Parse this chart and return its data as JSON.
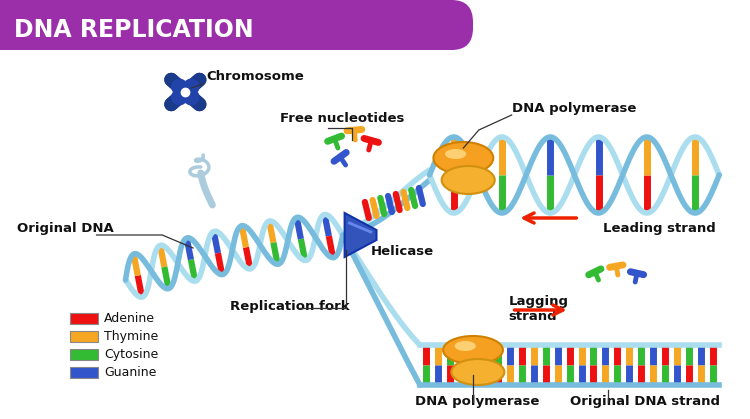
{
  "title": "DNA REPLICATION",
  "title_bg_color": "#9B2FAA",
  "title_text_color": "#FFFFFF",
  "bg_color": "#FFFFFF",
  "legend_items": [
    {
      "label": "Adenine",
      "color": "#EE1111"
    },
    {
      "label": "Thymine",
      "color": "#F5A623"
    },
    {
      "label": "Cytosine",
      "color": "#33BB33"
    },
    {
      "label": "Guanine",
      "color": "#3355CC"
    }
  ],
  "label_font_size": 9.5,
  "title_font_size": 17,
  "dna_colors": [
    "#EE1111",
    "#F5A623",
    "#33BB33",
    "#3355CC"
  ],
  "backbone_color1": "#AADDEE",
  "backbone_color2": "#77BBDD",
  "helicase_color": "#4466CC",
  "polymerase_color": "#F5A623",
  "arrow_color": "#EE2200"
}
